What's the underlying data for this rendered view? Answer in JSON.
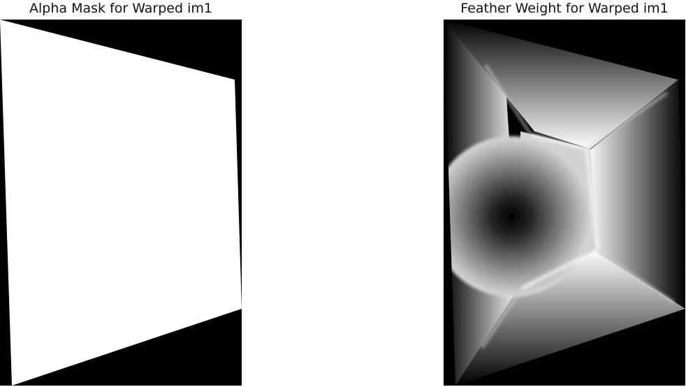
{
  "figures": [
    {
      "title": "Alpha Mask for Warped im1",
      "kind": "binary-mask",
      "colors": {
        "background": "#000000",
        "mask": "#ffffff"
      }
    },
    {
      "title": "Feather Weight for Warped im1",
      "kind": "distance-transform-grayscale",
      "colors": {
        "low": "#000000",
        "high": "#ffffff"
      }
    }
  ]
}
